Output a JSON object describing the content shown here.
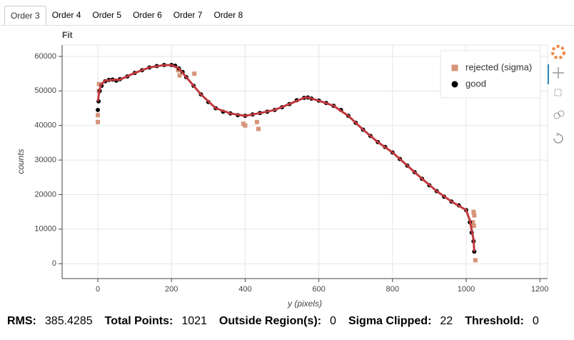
{
  "tabs": [
    "Order 3",
    "Order 4",
    "Order 5",
    "Order 6",
    "Order 7",
    "Order 8"
  ],
  "chart_data": {
    "type": "scatter",
    "title": "Fit",
    "x_label": "y (pixels)",
    "y_label": "counts",
    "xlim": [
      -97,
      1221
    ],
    "xticks": [
      0,
      200,
      400,
      600,
      800,
      1000,
      1200
    ],
    "ylim": [
      -4300,
      63300
    ],
    "yticks": [
      0,
      10000,
      20000,
      30000,
      40000,
      50000,
      60000
    ],
    "grid": true,
    "legend": "top-right",
    "series": [
      {
        "name": "rejected (sigma)",
        "color": "#d69478",
        "marker": "square",
        "x": [
          0,
          0,
          3,
          3,
          218,
          222,
          262,
          395,
          400,
          432,
          436,
          1018,
          1020,
          1021,
          1022,
          1025
        ],
        "values": [
          41000,
          43000,
          50000,
          52000,
          56000,
          54500,
          55000,
          40500,
          40000,
          41000,
          39000,
          12000,
          15000,
          11000,
          14000,
          1000
        ]
      },
      {
        "name": "good",
        "color": "#000000",
        "marker": "circle",
        "x": [
          0,
          2,
          5,
          10,
          20,
          30,
          40,
          50,
          60,
          80,
          100,
          120,
          140,
          160,
          180,
          200,
          210,
          220,
          230,
          240,
          260,
          280,
          300,
          320,
          340,
          360,
          380,
          400,
          420,
          440,
          460,
          480,
          500,
          520,
          540,
          560,
          570,
          580,
          600,
          620,
          640,
          660,
          680,
          700,
          720,
          740,
          760,
          780,
          800,
          820,
          840,
          860,
          880,
          900,
          920,
          940,
          960,
          980,
          1000,
          1010,
          1015,
          1020,
          1022
        ],
        "values": [
          44500,
          47000,
          50000,
          51500,
          52800,
          53200,
          53300,
          53000,
          53400,
          54200,
          55200,
          56000,
          56800,
          57200,
          57500,
          57500,
          57300,
          56500,
          55500,
          54000,
          51500,
          49000,
          46800,
          45000,
          44000,
          43500,
          43000,
          42800,
          43200,
          43600,
          44000,
          44500,
          45300,
          46200,
          47300,
          48000,
          48100,
          47800,
          47200,
          46500,
          45700,
          44500,
          42800,
          40800,
          38800,
          37000,
          35200,
          33800,
          32200,
          30300,
          28400,
          26500,
          24600,
          22700,
          21000,
          19400,
          18000,
          16900,
          15500,
          12000,
          9000,
          6500,
          3500
        ]
      }
    ],
    "fit": {
      "color": "#c0393f",
      "x": [
        0,
        5,
        10,
        20,
        40,
        60,
        100,
        140,
        180,
        200,
        220,
        240,
        280,
        320,
        360,
        400,
        440,
        480,
        520,
        560,
        570,
        600,
        640,
        680,
        720,
        760,
        800,
        840,
        880,
        920,
        960,
        1000,
        1010,
        1020,
        1022
      ],
      "values": [
        47000,
        50500,
        52000,
        53000,
        53200,
        53300,
        55200,
        56800,
        57500,
        57500,
        56500,
        54000,
        49000,
        45000,
        43500,
        42800,
        43600,
        44500,
        46200,
        48000,
        48100,
        47200,
        45700,
        42800,
        38800,
        35200,
        32200,
        28400,
        24600,
        21000,
        18000,
        15500,
        12500,
        7000,
        3500
      ]
    }
  },
  "stats": [
    {
      "label": "RMS:",
      "value": 385.4285
    },
    {
      "label": "Total Points:",
      "value": 1021
    },
    {
      "label": "Outside Region(s):",
      "value": 0
    },
    {
      "label": "Sigma Clipped:",
      "value": 22
    },
    {
      "label": "Threshold:",
      "value": 0
    }
  ]
}
